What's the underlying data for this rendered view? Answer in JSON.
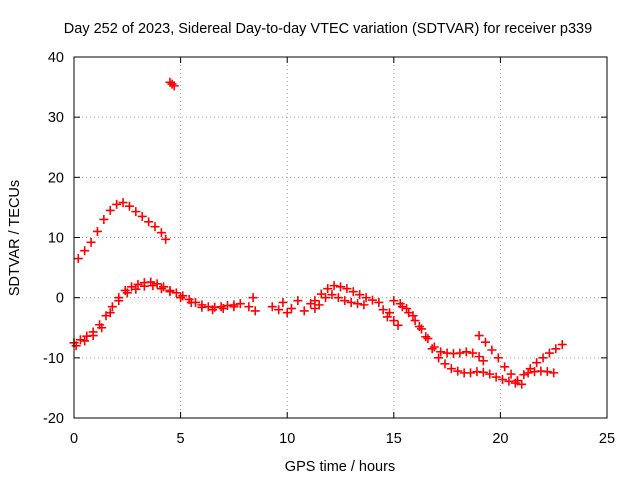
{
  "chart_data": {
    "type": "scatter",
    "title": "Day 252 of 2023, Sidereal Day-to-day VTEC variation (SDTVAR) for receiver p339",
    "xlabel": "GPS time / hours",
    "ylabel": "SDTVAR / TECUs",
    "xlim": [
      0,
      25
    ],
    "ylim": [
      -20,
      40
    ],
    "xticks": [
      "0",
      "5",
      "10",
      "15",
      "20",
      "25"
    ],
    "yticks": [
      "-20",
      "-10",
      "0",
      "10",
      "20",
      "30",
      "40"
    ],
    "grid": true,
    "marker": "+",
    "color": "#ff0000",
    "series": [
      {
        "name": "arc-upper-hump",
        "x": [
          0.2,
          0.5,
          0.8,
          1.1,
          1.4,
          1.7,
          2.0,
          2.3,
          2.6,
          2.9,
          3.2,
          3.5,
          3.8,
          4.1,
          4.3
        ],
        "y": [
          6.5,
          7.8,
          9.2,
          11.0,
          13.0,
          14.5,
          15.5,
          15.8,
          15.2,
          14.3,
          13.5,
          12.6,
          11.8,
          10.8,
          9.7
        ]
      },
      {
        "name": "arc-outlier-high",
        "x": [
          4.5,
          4.6,
          4.7
        ],
        "y": [
          35.8,
          35.5,
          35.2
        ]
      },
      {
        "name": "arc-main-early",
        "x": [
          0.0,
          0.3,
          0.6,
          0.9,
          1.2,
          1.5,
          1.8,
          2.1,
          2.4,
          2.7,
          3.0,
          3.3,
          3.6,
          3.9,
          4.2,
          4.5,
          4.8,
          5.1,
          5.4,
          5.7,
          6.0,
          6.3,
          6.6,
          6.9,
          7.2,
          7.5,
          7.8
        ],
        "y": [
          -7.5,
          -7.0,
          -6.4,
          -5.7,
          -4.5,
          -3.0,
          -1.5,
          0.0,
          1.2,
          1.8,
          2.2,
          2.5,
          2.6,
          2.3,
          1.8,
          1.2,
          0.8,
          0.3,
          -0.3,
          -0.8,
          -1.2,
          -1.5,
          -1.6,
          -1.5,
          -1.3,
          -1.2,
          -1.0
        ]
      },
      {
        "name": "arc-main-early-spread",
        "x": [
          0.1,
          0.5,
          0.9,
          1.3,
          1.7,
          2.1,
          2.5,
          2.9,
          3.3,
          3.7,
          4.1,
          4.5,
          5.0,
          5.5,
          6.0,
          6.5,
          7.0,
          7.5
        ],
        "y": [
          -8.0,
          -7.2,
          -6.3,
          -5.0,
          -2.5,
          -0.5,
          0.8,
          1.4,
          1.9,
          2.0,
          1.5,
          1.0,
          0.0,
          -0.8,
          -1.6,
          -2.0,
          -1.8,
          -1.5
        ]
      },
      {
        "name": "arc-midday-scatter",
        "x": [
          8.2,
          8.4,
          8.5,
          9.3,
          9.6,
          9.8,
          10.0,
          10.2,
          10.5,
          10.8,
          11.1,
          11.3
        ],
        "y": [
          -1.5,
          0.0,
          -2.2,
          -1.5,
          -2.0,
          -0.8,
          -2.5,
          -1.8,
          -0.5,
          -2.2,
          -1.0,
          -1.8
        ]
      },
      {
        "name": "arc-midday-hump",
        "x": [
          11.3,
          11.6,
          11.9,
          12.2,
          12.5,
          12.8,
          13.1,
          13.4,
          13.7,
          14.0,
          14.3,
          11.5,
          11.8,
          12.1,
          12.4,
          12.7,
          13.0,
          13.3,
          13.6
        ],
        "y": [
          -0.5,
          0.6,
          1.5,
          2.0,
          1.8,
          1.5,
          1.0,
          0.5,
          0.0,
          -0.4,
          -0.8,
          -1.2,
          0.0,
          0.5,
          0.0,
          -0.5,
          -0.8,
          -1.0,
          -1.2
        ]
      },
      {
        "name": "arc-side-branch",
        "x": [
          14.8,
          15.0,
          15.2,
          14.5,
          14.7
        ],
        "y": [
          -2.5,
          -3.8,
          -4.6,
          -2.0,
          -3.2
        ]
      },
      {
        "name": "arc-afternoon-decline",
        "x": [
          15.0,
          15.3,
          15.6,
          15.9,
          16.2,
          16.5,
          16.8,
          17.1,
          17.4,
          17.7,
          18.0,
          18.3,
          18.6,
          18.9,
          19.2,
          19.5,
          19.8,
          20.1,
          20.4,
          20.7,
          21.0
        ],
        "y": [
          -0.5,
          -1.0,
          -1.8,
          -3.0,
          -4.8,
          -6.5,
          -8.5,
          -10.0,
          -11.0,
          -11.8,
          -12.2,
          -12.5,
          -12.5,
          -12.3,
          -12.4,
          -12.7,
          -13.2,
          -13.6,
          -13.9,
          -14.2,
          -14.4
        ]
      },
      {
        "name": "arc-afternoon-upper",
        "x": [
          15.4,
          15.7,
          16.0,
          16.3,
          16.6,
          16.9,
          17.2,
          17.5,
          17.8,
          18.1,
          18.4,
          18.7,
          19.0,
          19.2
        ],
        "y": [
          -1.5,
          -2.5,
          -3.8,
          -5.2,
          -6.8,
          -8.2,
          -9.0,
          -9.2,
          -9.3,
          -9.2,
          -9.0,
          -9.2,
          -9.8,
          -10.5
        ]
      },
      {
        "name": "arc-late-descend",
        "x": [
          19.0,
          19.3,
          19.6,
          19.9,
          20.2,
          20.5,
          20.8
        ],
        "y": [
          -6.3,
          -7.4,
          -8.7,
          -10.0,
          -11.5,
          -12.7,
          -13.8
        ]
      },
      {
        "name": "arc-late-recovery",
        "x": [
          20.8,
          21.1,
          21.4,
          21.7,
          22.0,
          22.3,
          22.6,
          22.9
        ],
        "y": [
          -13.8,
          -12.8,
          -11.8,
          -10.8,
          -10.0,
          -9.2,
          -8.5,
          -7.8
        ]
      },
      {
        "name": "arc-late-flat",
        "x": [
          21.3,
          21.6,
          21.9,
          22.2,
          22.5
        ],
        "y": [
          -12.5,
          -12.3,
          -12.2,
          -12.3,
          -12.5
        ]
      }
    ]
  }
}
